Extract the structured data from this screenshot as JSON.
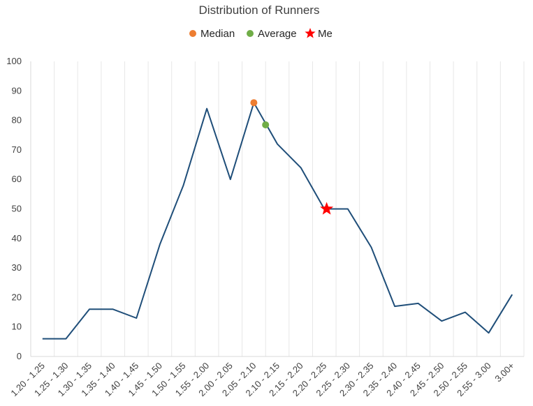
{
  "chart_data": {
    "type": "line",
    "title": "Distribution of Runners",
    "categories": [
      "1.20 - 1.25",
      "1.25 - 1.30",
      "1.30 - 1.35",
      "1.35 - 1.40",
      "1.40 - 1.45",
      "1.45 - 1.50",
      "1.50 - 1.55",
      "1.55 - 2.00",
      "2.00 - 2.05",
      "2.05 - 2.10",
      "2.10 - 2.15",
      "2.15 - 2.20",
      "2.20 - 2.25",
      "2.25 - 2.30",
      "2.30 - 2.35",
      "2.35 - 2.40",
      "2.40 - 2.45",
      "2.45 - 2.50",
      "2.50 - 2.55",
      "2.55 - 3.00",
      "3.00+"
    ],
    "series": [
      {
        "values": [
          6,
          6,
          16,
          16,
          13,
          38,
          58,
          84,
          60,
          86,
          72,
          64,
          50,
          50,
          37,
          17,
          18,
          12,
          15,
          8,
          21
        ],
        "color": "#1f4e79"
      }
    ],
    "markers": [
      {
        "name": "Median",
        "x": 9.0,
        "y": 86,
        "color": "#ed7d31",
        "shape": "circle"
      },
      {
        "name": "Average",
        "x": 9.5,
        "y": 78.5,
        "color": "#70ad47",
        "shape": "circle"
      },
      {
        "name": "Me",
        "x": 12.1,
        "y": 50,
        "color": "#ff0000",
        "shape": "star"
      }
    ],
    "legend": [
      "Median",
      "Average",
      "Me"
    ],
    "legend_position": "top",
    "ylim": [
      0,
      100
    ],
    "yticks": [
      0,
      10,
      20,
      30,
      40,
      50,
      60,
      70,
      80,
      90,
      100
    ],
    "grid": "vertical"
  }
}
